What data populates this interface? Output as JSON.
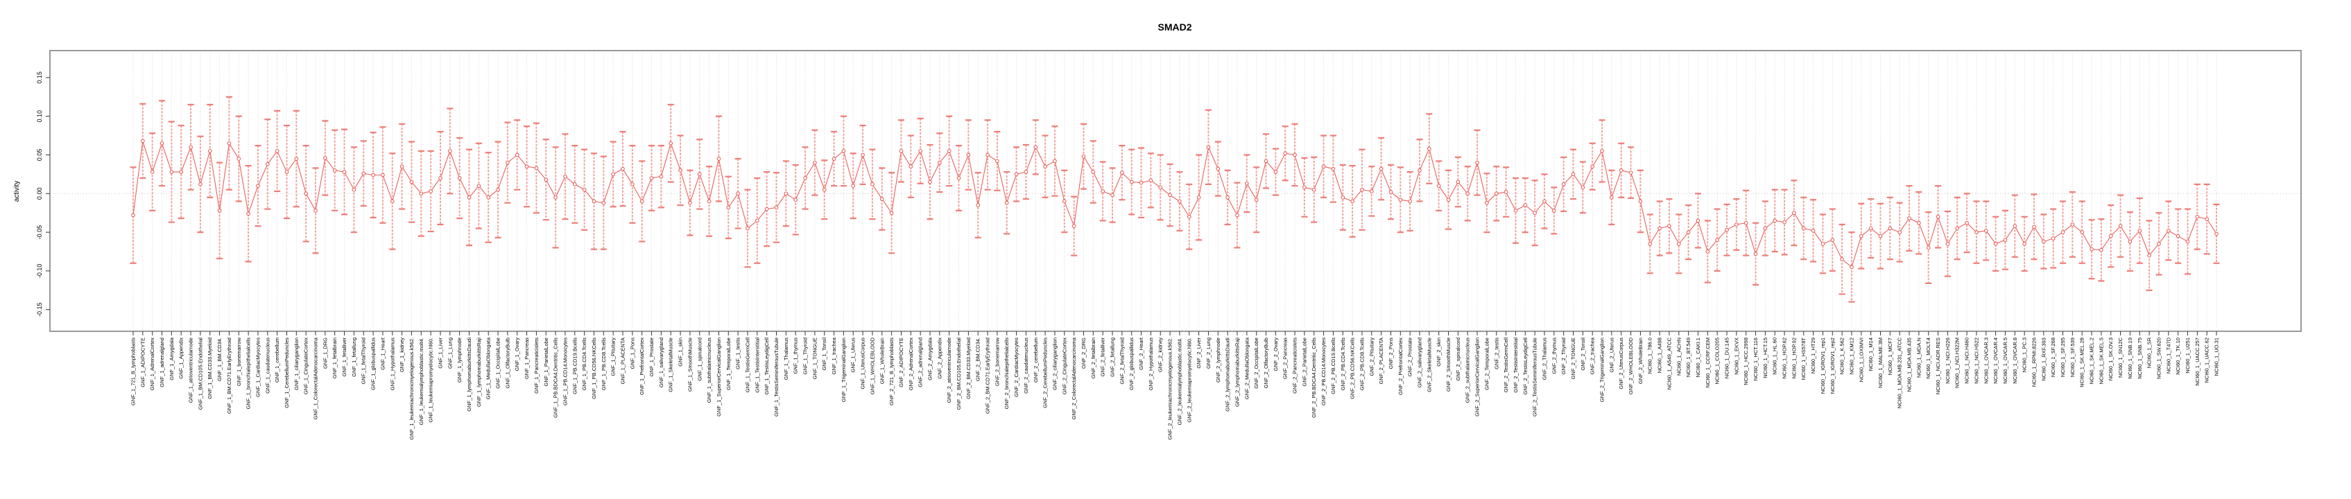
{
  "window": {
    "background": "#ffffff"
  },
  "chart_data": {
    "type": "line",
    "subtype": "points-with-error-bars",
    "title": "SMAD2",
    "xlabel": "",
    "ylabel": "activity",
    "ylim": [
      -0.178,
      0.185
    ],
    "yticks": [
      -0.15,
      -0.1,
      -0.05,
      0.0,
      0.05,
      0.1,
      0.15
    ],
    "grid": {
      "vertical_dotted_per_category": true,
      "horizontal_dotted_at_zero": true,
      "legend": "none"
    },
    "colors": {
      "point": "#e9625c",
      "line": "#e9625c",
      "error_line": "#f3a29e",
      "error_cap": "#ee7d76",
      "grid": "#d8d8d8",
      "zero_line": "#c4c4c4",
      "box": "#808080",
      "tick": "#333333"
    },
    "categories": [
      "GNF_1_721_B_lymphoblasts",
      "GNF_1_ADIPOCYTE",
      "GNF_1_AdrenalCortex",
      "GNF_1_adrenalgland",
      "GNF_1_Amygdala",
      "GNF_1_Appendix",
      "GNF_1_atrioventricularnode",
      "GNF_1_BM.CD105.Endothelial",
      "GNF_1_BM.CD33.Myeloid",
      "GNF_1_BM.CD34.",
      "GNF_1_BM.CD71.EarlyErythroid",
      "GNF_1_bonemarrow",
      "GNF_1_bronchialepithelialcells",
      "GNF_1_CardiacMyocytes",
      "GNF_1_caudatenucleus",
      "GNF_1_cerebellum",
      "GNF_1_CerebellumPeduncles",
      "GNF_1_ciliaryganglion",
      "GNF_1_CingulateCortex",
      "GNF_1_ColorectalAdenocarcinoma",
      "GNF_1_DRG",
      "GNF_1_fetalbrain",
      "GNF_1_fetalliver",
      "GNF_1_fetallung",
      "GNF_1_fetalThyroid",
      "GNF_1_globuspallidus",
      "GNF_1_Heart",
      "GNF_1_Hypothalamus",
      "GNF_1_kidney",
      "GNF_1_leukemiachronicmyelogenous.k562.",
      "GNF_1_leukemialymphoblastic.molt4.",
      "GNF_1_leukemiapromyelocytic.hl60.",
      "GNF_1_Liver",
      "GNF_1_Lung",
      "GNF_1_lymphnode",
      "GNF_1_lymphomaburkittsDaudi",
      "GNF_1_lymphomaburkittsRaji",
      "GNF_1_MedullaOblongata",
      "GNF_1_OccipitalLobe",
      "GNF_1_OlfactoryBulb",
      "GNF_1_Ovary",
      "GNF_1_Pancreas",
      "GNF_1_Pancreaticislets",
      "GNF_1_ParietalLobe",
      "GNF_1_PB.BDCA4.Dentritic_Cells",
      "GNF_1_PB.CD14.Monocytes",
      "GNF_1_PB.CD19.Bcells",
      "GNF_1_PB.CD4.Tcells",
      "GNF_1_PB.CD56.NKCells",
      "GNF_1_PB.CD8.Tcells",
      "GNF_1_Pituitary",
      "GNF_1_PLACENTA",
      "GNF_1_Pons",
      "GNF_1_PrefrontalCortex",
      "GNF_1_Prostate",
      "GNF_1_salivarygland",
      "GNF_1_SkeletalMuscle",
      "GNF_1_skin",
      "GNF_1_SmoothMuscle",
      "GNF_1_spinalcord",
      "GNF_1_subthalamicnucleus",
      "GNF_1_SuperiorCervicalGanglion",
      "GNF_1_TemporalLobe",
      "GNF_1_testis",
      "GNF_1_TestisGermCell",
      "GNF_1_TestisInterstitial",
      "GNF_1_TestisLeydigCell",
      "GNF_1_TestisSeminiferousTubule",
      "GNF_1_Thalamus",
      "GNF_1_thymus",
      "GNF_1_Thyroid",
      "GNF_1_TONGUE",
      "GNF_1_Tonsil",
      "GNF_1_trachea",
      "GNF_1_TrigeminalGanglion",
      "GNF_1_Uterus",
      "GNF_1_UterusCorpus",
      "GNF_1_WHOLEBLOOD",
      "GNF_1_WholeBrain",
      "GNF_2_721_B_lymphoblasts",
      "GNF_2_ADIPOCYTE",
      "GNF_2_AdrenalCortex",
      "GNF_2_adrenalgland",
      "GNF_2_Amygdala",
      "GNF_2_Appendix",
      "GNF_2_atrioventricularnode",
      "GNF_2_BM.CD105.Endothelial",
      "GNF_2_BM.CD33.Myeloid",
      "GNF_2_BM.CD34.",
      "GNF_2_BM.CD71.EarlyErythroid",
      "GNF_2_bonemarrow",
      "GNF_2_bronchialepithelialcells",
      "GNF_2_CardiacMyocytes",
      "GNF_2_caudatenucleus",
      "GNF_2_cerebellum",
      "GNF_2_CerebellumPeduncles",
      "GNF_2_ciliaryganglion",
      "GNF_2_CingulateCortex",
      "GNF_2_ColorectalAdenocarcinoma",
      "GNF_2_DRG",
      "GNF_2_fetalbrain",
      "GNF_2_fetalliver",
      "GNF_2_fetallung",
      "GNF_2_fetalThyroid",
      "GNF_2_globuspallidus",
      "GNF_2_Heart",
      "GNF_2_Hypothalamus",
      "GNF_2_kidney",
      "GNF_2_leukemiachronicmyelogenous.k562.",
      "GNF_2_leukemialymphoblastic.molt4.",
      "GNF_2_leukemiapromyelocytic.hl60.",
      "GNF_2_Liver",
      "GNF_2_Lung",
      "GNF_2_lymphnode",
      "GNF_2_lymphomaburkittsDaudi",
      "GNF_2_lymphomaburkittsRaji",
      "GNF_2_MedullaOblongata",
      "GNF_2_OccipitalLobe",
      "GNF_2_OlfactoryBulb",
      "GNF_2_Ovary",
      "GNF_2_Pancreas",
      "GNF_2_Pancreaticislets",
      "GNF_2_ParietalLobe",
      "GNF_2_PB.BDCA4.Dentritic_Cells",
      "GNF_2_PB.CD14.Monocytes",
      "GNF_2_PB.CD19.Bcells",
      "GNF_2_PB.CD4.Tcells",
      "GNF_2_PB.CD56.NKCells",
      "GNF_2_PB.CD8.Tcells",
      "GNF_2_Pituitary",
      "GNF_2_PLACENTA",
      "GNF_2_Pons",
      "GNF_2_PrefrontalCortex",
      "GNF_2_Prostate",
      "GNF_2_salivarygland",
      "GNF_2_SkeletalMuscle",
      "GNF_2_skin",
      "GNF_2_SmoothMuscle",
      "GNF_2_spinalcord",
      "GNF_2_subthalamicnucleus",
      "GNF_2_SuperiorCervicalGanglion",
      "GNF_2_TemporalLobe",
      "GNF_2_testis",
      "GNF_2_TestisGermCell",
      "GNF_2_TestisInterstitial",
      "GNF_2_TestisLeydigCell",
      "GNF_2_TestisSeminiferousTubule",
      "GNF_2_Thalamus",
      "GNF_2_thymus",
      "GNF_2_Thyroid",
      "GNF_2_TONGUE",
      "GNF_2_Tonsil",
      "GNF_2_trachea",
      "GNF_2_TrigeminalGanglion",
      "GNF_2_Uterus",
      "GNF_2_UterusCorpus",
      "GNF_2_WHOLEBLOOD",
      "GNF_2_WholeBrain",
      "NCI60_1_786.0",
      "NCI60_1_A498",
      "NCI60_1_A549_ATCC",
      "NCI60_1_ACHN",
      "NCI60_1_BT.549",
      "NCI60_1_CAKI.1",
      "NCI60_1_CCRF.CEM",
      "NCI60_1_COLO205",
      "NCI60_1_DU.145",
      "NCI60_1_EKVX",
      "NCI60_1_HCC.2998",
      "NCI60_1_HCT.116",
      "NCI60_1_HCT.15",
      "NCI60_1_HL.60",
      "NCI60_1_HOP.62",
      "NCI60_1_HOP.92",
      "NCI60_1_HS578T",
      "NCI60_1_HT29",
      "NCI60_1_IGROV1_rep1",
      "NCI60_1_IGROV1_rep2",
      "NCI60_1_K.562",
      "NCI60_1_KM12",
      "NCI60_1_LOXIMVI",
      "NCI60_1_M14",
      "NCI60_1_MALME.3M",
      "NCI60_1_MCF7",
      "NCI60_1_MDA.MB.231_ATCC",
      "NCI60_1_MDA.MB.435",
      "NCI60_1_MDA.N",
      "NCI60_1_MOLT.4",
      "NCI60_1_NCI.ADR.RES",
      "NCI60_1_NCI.H226",
      "NCI60_1_NCI.H322M",
      "NCI60_1_NCI.H460",
      "NCI60_1_NCI.H522",
      "NCI60_1_OVCAR.3",
      "NCI60_1_OVCAR.4",
      "NCI60_1_OVCAR.5",
      "NCI60_1_OVCAR.8",
      "NCI60_1_PC.3",
      "NCI60_1_RPMI.8226",
      "NCI60_1_RXF.393",
      "NCI60_1_SF.268",
      "NCI60_1_SF.295",
      "NCI60_1_SF.539",
      "NCI60_1_SK.MEL.28",
      "NCI60_1_SK.MEL.2",
      "NCI60_1_SK.MEL.5",
      "NCI60_1_SK.OV.3",
      "NCI60_1_SN12C",
      "NCI60_1_SNB.19",
      "NCI60_1_SNB.75",
      "NCI60_1_SR",
      "NCI60_1_SW.620",
      "NCI60_1_T47D",
      "NCI60_1_TK.10",
      "NCI60_1_U251",
      "NCI60_1_UACC.257",
      "NCI60_1_UACC.62",
      "NCI60_1_UO.31"
    ],
    "values": [
      -0.028,
      0.068,
      0.028,
      0.065,
      0.028,
      0.028,
      0.06,
      0.012,
      0.055,
      -0.022,
      0.065,
      0.045,
      -0.026,
      0.01,
      0.038,
      0.055,
      0.028,
      0.045,
      0.0,
      -0.022,
      0.046,
      0.03,
      0.028,
      0.005,
      0.026,
      0.024,
      0.024,
      -0.01,
      0.035,
      0.015,
      0.0,
      0.003,
      0.02,
      0.055,
      0.02,
      -0.005,
      0.01,
      -0.005,
      0.005,
      0.04,
      0.05,
      0.035,
      0.033,
      0.018,
      -0.005,
      0.022,
      0.012,
      0.005,
      -0.01,
      -0.012,
      0.025,
      0.032,
      0.012,
      -0.01,
      0.02,
      0.022,
      0.065,
      0.03,
      -0.012,
      0.025,
      -0.01,
      0.045,
      -0.018,
      0.0,
      -0.045,
      -0.035,
      -0.02,
      -0.018,
      0.0,
      -0.008,
      0.02,
      0.04,
      0.005,
      0.045,
      0.055,
      0.01,
      0.05,
      0.012,
      -0.007,
      -0.025,
      0.055,
      0.035,
      0.055,
      0.015,
      0.04,
      0.055,
      0.02,
      0.05,
      -0.015,
      0.05,
      0.042,
      -0.012,
      0.025,
      0.028,
      0.06,
      0.035,
      0.042,
      -0.01,
      -0.042,
      0.048,
      0.028,
      0.003,
      -0.002,
      0.027,
      0.015,
      0.014,
      0.017,
      0.008,
      -0.002,
      -0.01,
      -0.03,
      -0.005,
      0.06,
      0.032,
      -0.005,
      -0.028,
      0.013,
      -0.008,
      0.042,
      0.028,
      0.052,
      0.05,
      0.008,
      0.005,
      0.035,
      0.032,
      -0.005,
      -0.01,
      0.005,
      0.003,
      0.032,
      0.002,
      -0.008,
      -0.01,
      0.03,
      0.058,
      0.01,
      -0.008,
      0.015,
      0.0,
      0.04,
      -0.012,
      0.0,
      0.002,
      -0.022,
      -0.015,
      -0.025,
      -0.01,
      -0.022,
      0.012,
      0.025,
      0.008,
      0.035,
      0.055,
      -0.005,
      0.03,
      0.027,
      -0.01,
      -0.065,
      -0.045,
      -0.042,
      -0.065,
      -0.05,
      -0.035,
      -0.075,
      -0.06,
      -0.047,
      -0.04,
      -0.038,
      -0.078,
      -0.045,
      -0.035,
      -0.037,
      -0.025,
      -0.045,
      -0.048,
      -0.065,
      -0.06,
      -0.085,
      -0.095,
      -0.055,
      -0.045,
      -0.055,
      -0.045,
      -0.05,
      -0.032,
      -0.038,
      -0.07,
      -0.03,
      -0.065,
      -0.045,
      -0.038,
      -0.05,
      -0.048,
      -0.065,
      -0.06,
      -0.042,
      -0.065,
      -0.043,
      -0.062,
      -0.058,
      -0.05,
      -0.04,
      -0.05,
      -0.072,
      -0.073,
      -0.055,
      -0.042,
      -0.062,
      -0.048,
      -0.08,
      -0.065,
      -0.048,
      -0.055,
      -0.062,
      -0.03,
      -0.033,
      -0.052
    ],
    "errors": [
      0.062,
      0.048,
      0.05,
      0.055,
      0.065,
      0.06,
      0.055,
      0.062,
      0.06,
      0.062,
      0.06,
      0.055,
      0.062,
      0.052,
      0.058,
      0.052,
      0.06,
      0.062,
      0.062,
      0.055,
      0.048,
      0.052,
      0.055,
      0.055,
      0.042,
      0.055,
      0.062,
      0.062,
      0.055,
      0.052,
      0.055,
      0.052,
      0.06,
      0.055,
      0.052,
      0.062,
      0.055,
      0.058,
      0.062,
      0.052,
      0.045,
      0.052,
      0.058,
      0.052,
      0.065,
      0.055,
      0.05,
      0.052,
      0.062,
      0.06,
      0.042,
      0.048,
      0.05,
      0.052,
      0.042,
      0.04,
      0.05,
      0.045,
      0.042,
      0.045,
      0.045,
      0.055,
      0.04,
      0.045,
      0.05,
      0.055,
      0.048,
      0.045,
      0.042,
      0.045,
      0.04,
      0.042,
      0.038,
      0.035,
      0.045,
      0.042,
      0.038,
      0.045,
      0.04,
      0.052,
      0.04,
      0.04,
      0.042,
      0.048,
      0.038,
      0.045,
      0.042,
      0.045,
      0.042,
      0.045,
      0.038,
      0.04,
      0.035,
      0.035,
      0.035,
      0.04,
      0.045,
      0.04,
      0.038,
      0.042,
      0.04,
      0.038,
      0.035,
      0.035,
      0.042,
      0.045,
      0.035,
      0.042,
      0.04,
      0.038,
      0.042,
      0.055,
      0.048,
      0.035,
      0.035,
      0.042,
      0.037,
      0.042,
      0.035,
      0.03,
      0.035,
      0.04,
      0.038,
      0.042,
      0.04,
      0.043,
      0.042,
      0.046,
      0.052,
      0.032,
      0.04,
      0.035,
      0.042,
      0.038,
      0.04,
      0.045,
      0.032,
      0.038,
      0.032,
      0.035,
      0.042,
      0.038,
      0.035,
      0.032,
      0.042,
      0.035,
      0.042,
      0.035,
      0.03,
      0.035,
      0.032,
      0.033,
      0.03,
      0.04,
      0.035,
      0.035,
      0.033,
      0.04,
      0.038,
      0.035,
      0.035,
      0.038,
      0.035,
      0.035,
      0.04,
      0.04,
      0.033,
      0.033,
      0.042,
      0.04,
      0.035,
      0.04,
      0.042,
      0.042,
      0.04,
      0.04,
      0.038,
      0.04,
      0.045,
      0.045,
      0.042,
      0.038,
      0.042,
      0.04,
      0.038,
      0.042,
      0.04,
      0.046,
      0.04,
      0.042,
      0.04,
      0.038,
      0.04,
      0.038,
      0.035,
      0.038,
      0.04,
      0.035,
      0.042,
      0.035,
      0.038,
      0.04,
      0.042,
      0.04,
      0.038,
      0.04,
      0.04,
      0.04,
      0.038,
      0.042,
      0.045,
      0.04,
      0.038,
      0.035,
      0.042,
      0.042,
      0.045,
      0.038
    ]
  }
}
